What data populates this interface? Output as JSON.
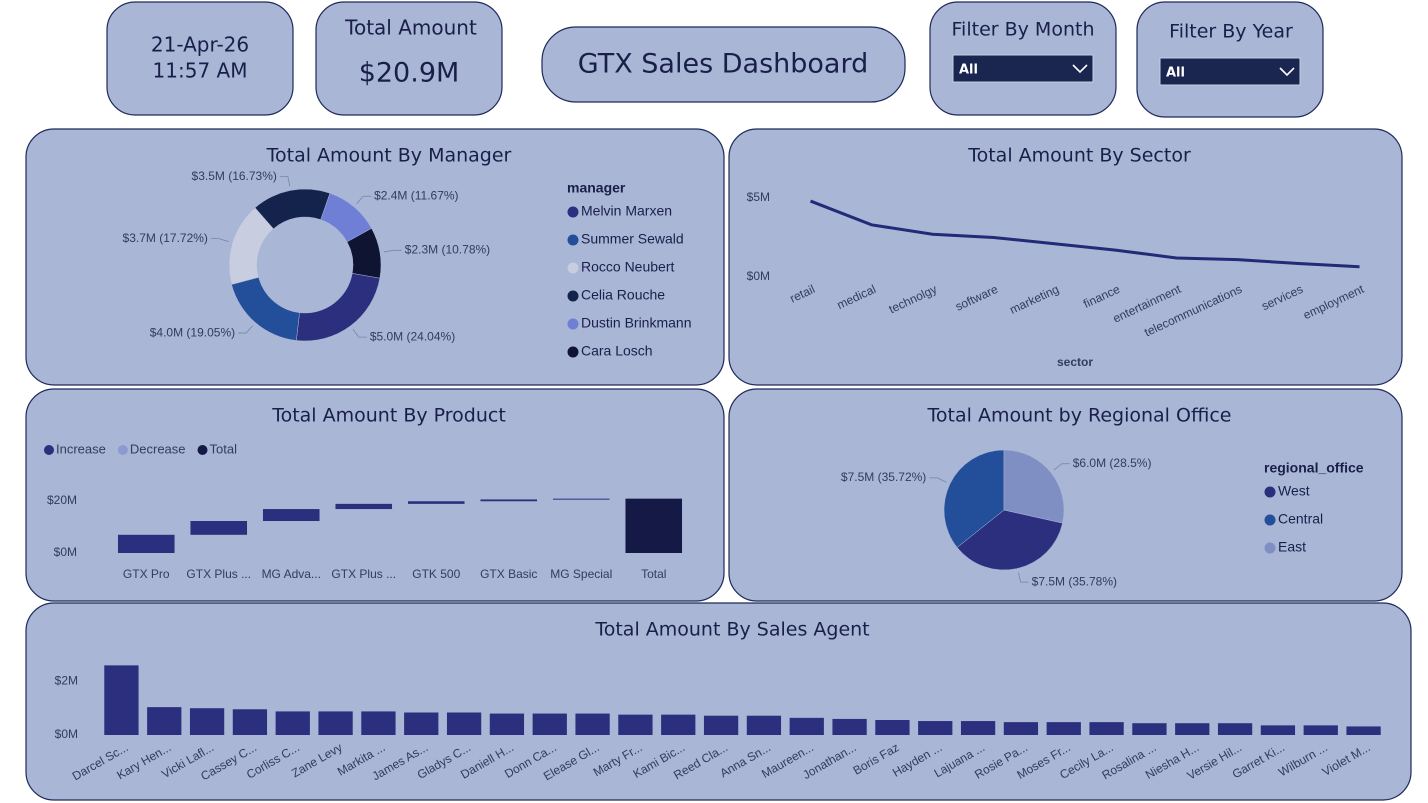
{
  "header": {
    "date": "21-Apr-26",
    "time": "11:57 AM",
    "total_label": "Total Amount",
    "total_value": "$20.9M",
    "title": "GTX Sales Dashboard",
    "filters": [
      {
        "label": "Filter By Month",
        "selected": "All"
      },
      {
        "label": "Filter By Year",
        "selected": "All"
      }
    ]
  },
  "chart_data": [
    {
      "type": "donut",
      "title": "Total Amount By Manager",
      "legend_title": "manager",
      "categories": [
        "Melvin Marxen",
        "Summer Sewald",
        "Rocco Neubert",
        "Celia Rouche",
        "Dustin Brinkmann",
        "Cara Losch"
      ],
      "values": [
        24.04,
        19.05,
        17.72,
        16.73,
        11.67,
        10.78
      ],
      "value_labels": [
        "$5.0M (24.04%)",
        "$4.0M (19.05%)",
        "$3.7M (17.72%)",
        "$3.5M (16.73%)",
        "$2.4M (11.67%)",
        "$2.3M (10.78%)"
      ],
      "colors": [
        "#2b2f7e",
        "#234e9a",
        "#c8cde0",
        "#13234b",
        "#6f7fd6",
        "#0f1433"
      ]
    },
    {
      "type": "line",
      "title": "Total Amount By Sector",
      "x_label": "sector",
      "categories": [
        "retail",
        "medical",
        "technolgy",
        "software",
        "marketing",
        "finance",
        "entertainment",
        "telecommunications",
        "services",
        "employment"
      ],
      "values": [
        4.8,
        3.3,
        2.7,
        2.5,
        2.1,
        1.7,
        1.2,
        1.1,
        0.85,
        0.65
      ],
      "color": "#232a78",
      "ylim": [
        0,
        5.5
      ],
      "yticks": [
        {
          "value": 0,
          "label": "$0M"
        },
        {
          "value": 5,
          "label": "$5M"
        }
      ]
    },
    {
      "type": "waterfall",
      "title": "Total Amount By Product",
      "legend": [
        {
          "name": "Increase",
          "color": "#2b2f7e"
        },
        {
          "name": "Decrease",
          "color": "#8c9ad0"
        },
        {
          "name": "Total",
          "color": "#141a45"
        }
      ],
      "categories": [
        "GTX Pro",
        "GTX Plus ...",
        "MG Adva...",
        "GTX Plus ...",
        "GTK 500",
        "GTX Basic",
        "MG Special",
        "Total"
      ],
      "values": [
        7.0,
        5.3,
        4.6,
        2.0,
        1.0,
        0.7,
        0.3,
        20.9
      ],
      "ylim": [
        0,
        25
      ],
      "yticks": [
        {
          "value": 0,
          "label": "$0M"
        },
        {
          "value": 20,
          "label": "$20M"
        }
      ]
    },
    {
      "type": "pie",
      "title": "Total Amount by Regional Office",
      "legend_title": "regional_office",
      "categories": [
        "West",
        "Central",
        "East"
      ],
      "values": [
        35.78,
        35.72,
        28.5
      ],
      "value_labels": [
        "$7.5M (35.78%)",
        "$7.5M (35.72%)",
        "$6.0M (28.5%)"
      ],
      "colors": [
        "#2b2f7e",
        "#234e9a",
        "#7f8fc4"
      ]
    },
    {
      "type": "bar",
      "title": "Total Amount By Sales Agent",
      "categories": [
        "Darcel Sc...",
        "Kary Hen...",
        "Vicki Lafl...",
        "Cassey C...",
        "Corliss C...",
        "Zane Levy",
        "Markita ...",
        "James As...",
        "Gladys C...",
        "Daniell H...",
        "Donn Ca...",
        "Elease Gl...",
        "Marty Fr...",
        "Kami Bic...",
        "Reed Cla...",
        "Anna Sn...",
        "Maureen...",
        "Jonathan...",
        "Boris Faz",
        "Hayden ...",
        "Lajuana ...",
        "Rosie Pa...",
        "Moses Fr...",
        "Cecily La...",
        "Rosalina ...",
        "Niesha H...",
        "Versie Hil...",
        "Garret Ki...",
        "Wilburn ...",
        "Violet M..."
      ],
      "values": [
        2.6,
        1.04,
        1.0,
        0.96,
        0.88,
        0.88,
        0.88,
        0.84,
        0.84,
        0.8,
        0.8,
        0.8,
        0.76,
        0.76,
        0.72,
        0.72,
        0.64,
        0.6,
        0.56,
        0.52,
        0.52,
        0.48,
        0.48,
        0.48,
        0.44,
        0.44,
        0.44,
        0.36,
        0.36,
        0.32
      ],
      "color": "#2b2f7e",
      "ylim": [
        0,
        2.8
      ],
      "yticks": [
        {
          "value": 0,
          "label": "$0M"
        },
        {
          "value": 2,
          "label": "$2M"
        }
      ]
    }
  ]
}
